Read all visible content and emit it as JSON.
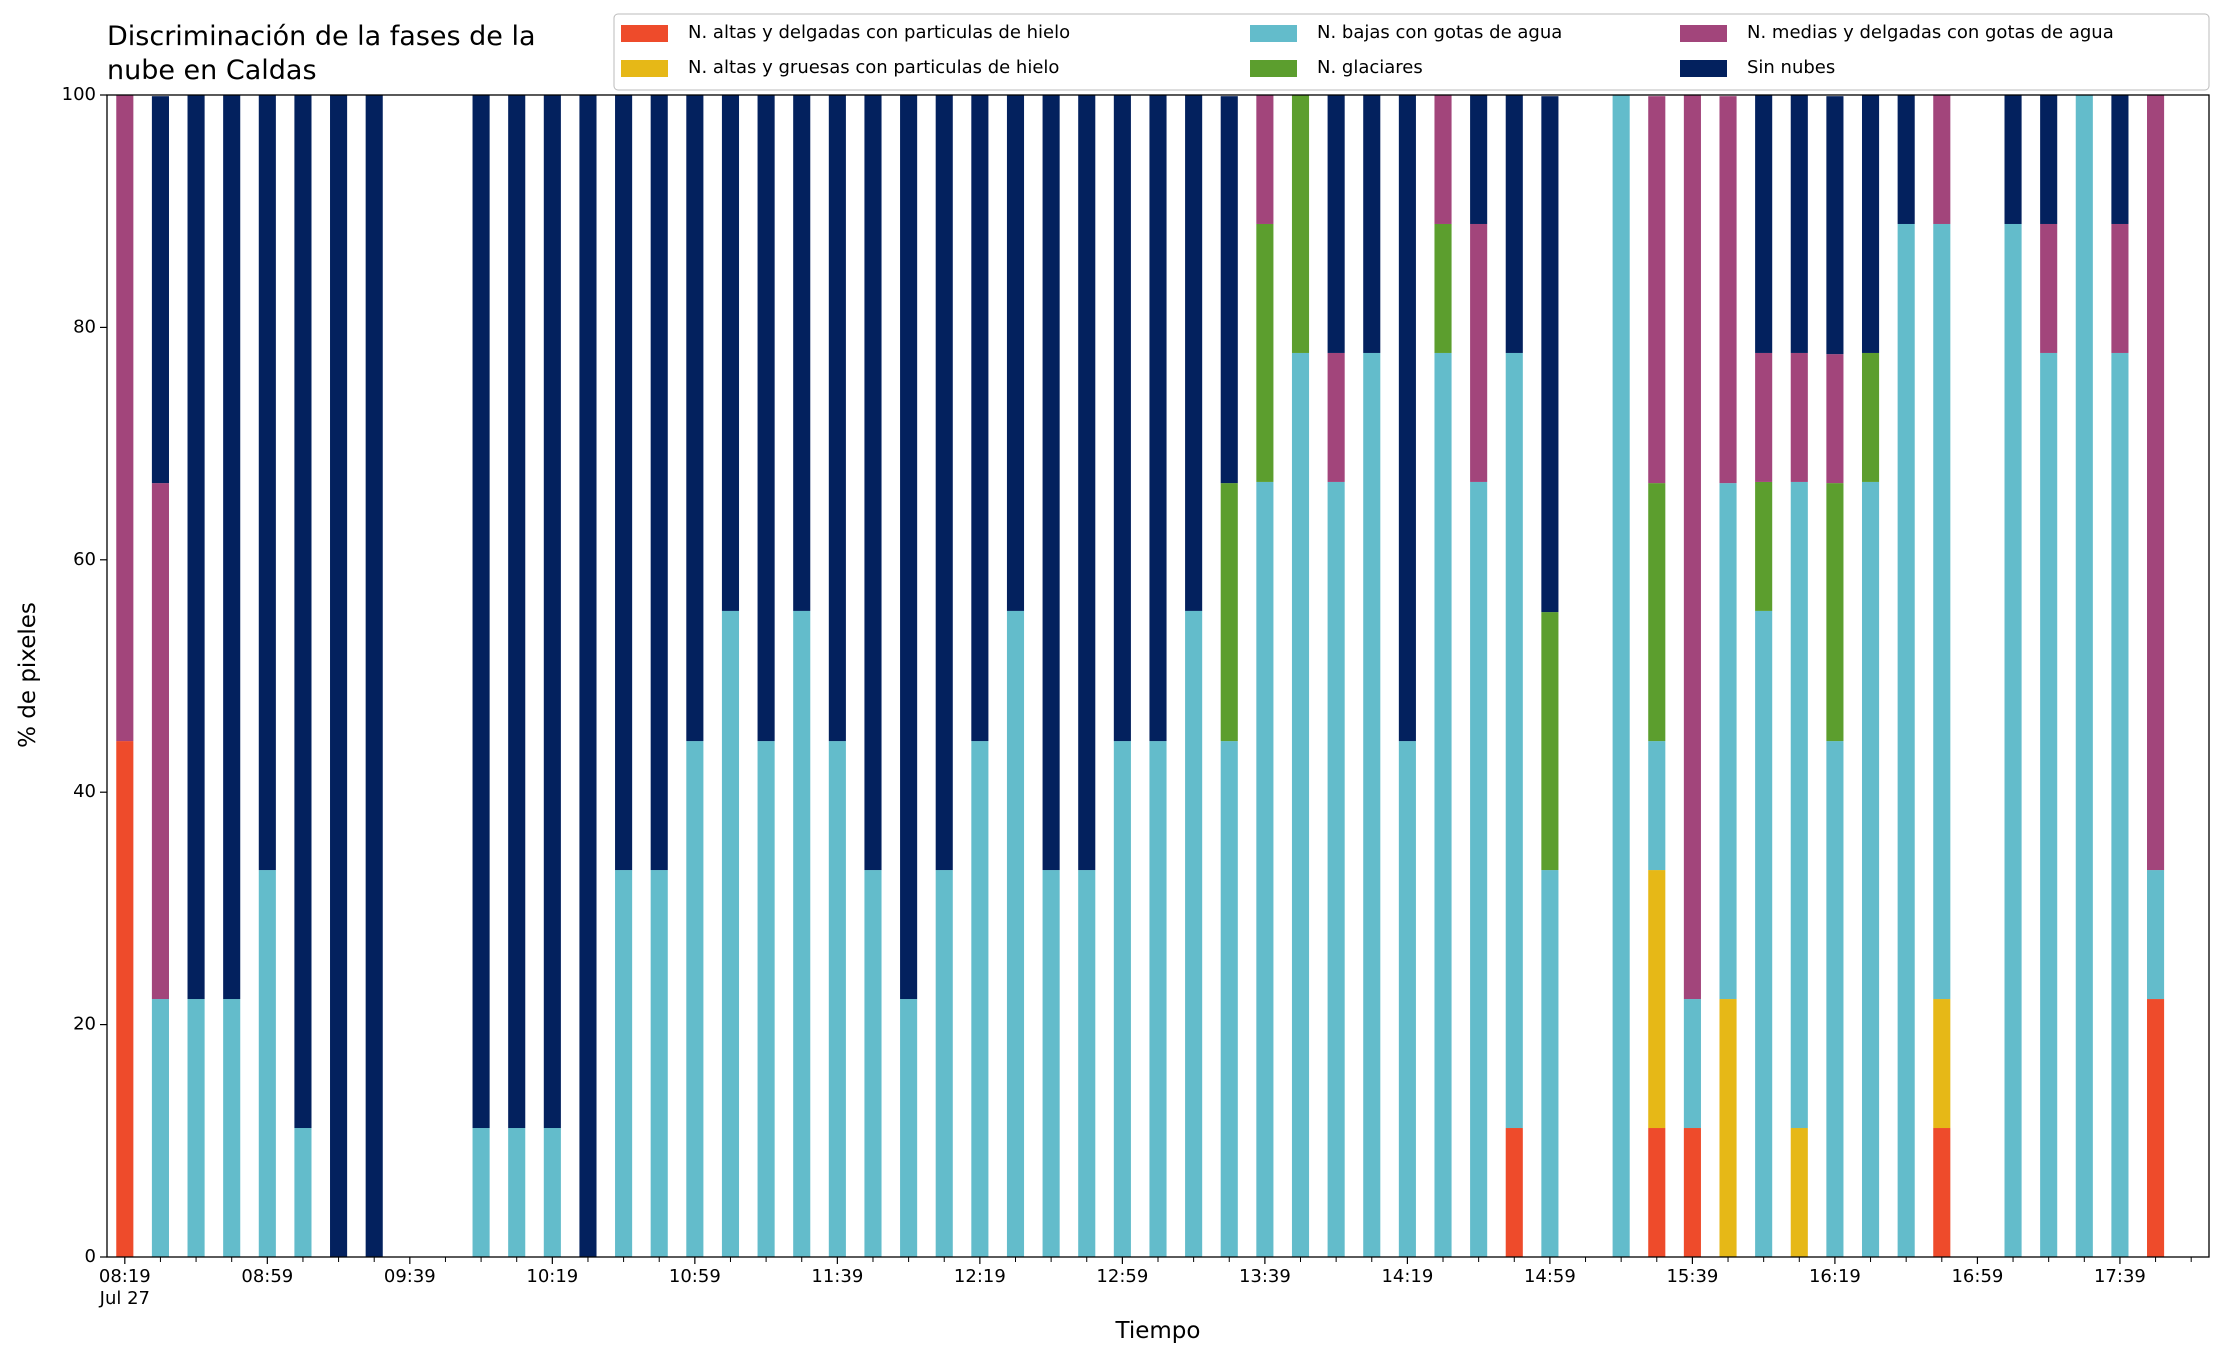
{
  "chart_data": {
    "type": "stacked_bar",
    "title": "Discriminación de la fases de la\nnube en Caldas",
    "xlabel": "Tiempo",
    "ylabel": "% de pixeles",
    "x": [
      "08:19",
      "08:29",
      "08:39",
      "08:49",
      "08:59",
      "09:09",
      "09:19",
      "09:29",
      "09:59",
      "10:09",
      "10:19",
      "10:29",
      "10:39",
      "10:49",
      "10:59",
      "11:09",
      "11:19",
      "11:29",
      "11:39",
      "11:49",
      "11:59",
      "12:09",
      "12:19",
      "12:29",
      "12:39",
      "12:49",
      "12:59",
      "13:09",
      "13:19",
      "13:29",
      "13:39",
      "13:49",
      "13:59",
      "14:09",
      "14:19",
      "14:29",
      "14:39",
      "14:49",
      "14:59",
      "15:19",
      "15:29",
      "15:39",
      "15:49",
      "15:59",
      "16:09",
      "16:19",
      "16:29",
      "16:39",
      "16:49",
      "17:09",
      "17:19",
      "17:29",
      "17:39",
      "17:49"
    ],
    "series": [
      {
        "name": "N. altas y delgadas con particulas de hielo",
        "color": "#ee4b2b",
        "values": [
          44.4,
          0,
          0,
          0,
          0,
          0,
          0,
          0,
          0,
          0,
          0,
          0,
          0,
          0,
          0,
          0,
          0,
          0,
          0,
          0,
          0,
          0,
          0,
          0,
          0,
          0,
          0,
          0,
          0,
          0,
          0,
          0,
          0,
          0,
          0,
          0,
          0,
          11.1,
          0,
          0,
          11.1,
          11.1,
          0,
          0,
          0,
          0,
          0,
          0,
          11.1,
          0,
          0,
          0,
          0,
          22.2
        ]
      },
      {
        "name": "N. altas y gruesas con particulas de hielo",
        "color": "#e6b817",
        "values": [
          0,
          0,
          0,
          0,
          0,
          0,
          0,
          0,
          0,
          0,
          0,
          0,
          0,
          0,
          0,
          0,
          0,
          0,
          0,
          0,
          0,
          0,
          0,
          0,
          0,
          0,
          0,
          0,
          0,
          0,
          0,
          0,
          0,
          0,
          0,
          0,
          0,
          0,
          0,
          0,
          22.2,
          0,
          22.2,
          0,
          11.1,
          0,
          0,
          0,
          11.1,
          0,
          0,
          0,
          0,
          0
        ]
      },
      {
        "name": "N. bajas con gotas de agua",
        "color": "#63bccb",
        "values": [
          0,
          22.2,
          22.2,
          22.2,
          33.3,
          11.1,
          0,
          0,
          11.1,
          11.1,
          11.1,
          0,
          33.3,
          33.3,
          44.4,
          55.6,
          44.4,
          55.6,
          44.4,
          33.3,
          22.2,
          33.3,
          44.4,
          55.6,
          33.3,
          33.3,
          44.4,
          44.4,
          55.6,
          44.4,
          66.7,
          77.8,
          66.7,
          77.8,
          44.4,
          77.8,
          66.7,
          66.7,
          33.3,
          100,
          11.1,
          11.1,
          44.4,
          55.6,
          55.6,
          44.4,
          66.7,
          88.9,
          66.7,
          88.9,
          77.8,
          100,
          77.8,
          11.1
        ]
      },
      {
        "name": "N. glaciares",
        "color": "#5c9e2e",
        "values": [
          0,
          0,
          0,
          0,
          0,
          0,
          0,
          0,
          0,
          0,
          0,
          0,
          0,
          0,
          0,
          0,
          0,
          0,
          0,
          0,
          0,
          0,
          0,
          0,
          0,
          0,
          0,
          0,
          0,
          22.2,
          22.2,
          22.2,
          0,
          0,
          0,
          11.1,
          0,
          0,
          22.2,
          0,
          22.2,
          0,
          0,
          11.1,
          0,
          22.2,
          11.1,
          0,
          0,
          0,
          0,
          0,
          0,
          0
        ]
      },
      {
        "name": "N. medias y delgadas con gotas de agua",
        "color": "#a2457b",
        "values": [
          55.6,
          44.4,
          0,
          0,
          0,
          0,
          0,
          0,
          0,
          0,
          0,
          0,
          0,
          0,
          0,
          0,
          0,
          0,
          0,
          0,
          0,
          0,
          0,
          0,
          0,
          0,
          0,
          0,
          0,
          0,
          11.1,
          0,
          11.1,
          0,
          0,
          11.1,
          22.2,
          0,
          0,
          0,
          33.3,
          77.8,
          33.3,
          11.1,
          11.1,
          11.1,
          0,
          0,
          11.1,
          0,
          11.1,
          0,
          11.1,
          66.7
        ]
      },
      {
        "name": "Sin nubes",
        "color": "#03215e",
        "values": [
          0,
          33.3,
          77.8,
          77.8,
          66.7,
          88.9,
          100,
          100,
          88.9,
          88.9,
          88.9,
          100,
          66.7,
          66.7,
          55.6,
          44.4,
          55.6,
          44.4,
          55.6,
          66.7,
          77.8,
          66.7,
          55.6,
          44.4,
          66.7,
          66.7,
          55.6,
          55.6,
          44.4,
          33.3,
          0,
          0,
          22.2,
          22.2,
          55.6,
          0,
          11.1,
          22.2,
          44.4,
          0,
          0,
          0,
          0,
          22.2,
          22.2,
          22.2,
          22.2,
          11.1,
          0,
          11.1,
          11.1,
          0,
          11.1,
          0
        ]
      }
    ],
    "xlim": [
      "08:14",
      "18:04"
    ],
    "xticks": [
      {
        "value": "08:19",
        "label": "08:19\nJul 27"
      },
      "08:59",
      "09:39",
      "10:19",
      "10:59",
      "11:39",
      "12:19",
      "12:59",
      "13:39",
      "14:19",
      "14:59",
      "15:39",
      "16:19",
      "16:59",
      "17:39"
    ],
    "xminorticks": [
      "08:29",
      "08:39",
      "08:49",
      "09:09",
      "09:19",
      "09:29",
      "09:49",
      "09:59",
      "10:09",
      "10:29",
      "10:39",
      "10:49",
      "11:09",
      "11:19",
      "11:29",
      "11:49",
      "11:59",
      "12:09",
      "12:29",
      "12:39",
      "12:49",
      "13:09",
      "13:19",
      "13:29",
      "13:49",
      "13:59",
      "14:09",
      "14:29",
      "14:39",
      "14:49",
      "15:09",
      "15:19",
      "15:29",
      "15:49",
      "15:59",
      "16:09",
      "16:29",
      "16:39",
      "16:49",
      "17:09",
      "17:19",
      "17:29",
      "17:49",
      "17:59"
    ],
    "ylim": [
      0,
      100
    ],
    "yticks": [
      0,
      20,
      40,
      60,
      80,
      100
    ],
    "grid": false,
    "legend": "upper right"
  }
}
